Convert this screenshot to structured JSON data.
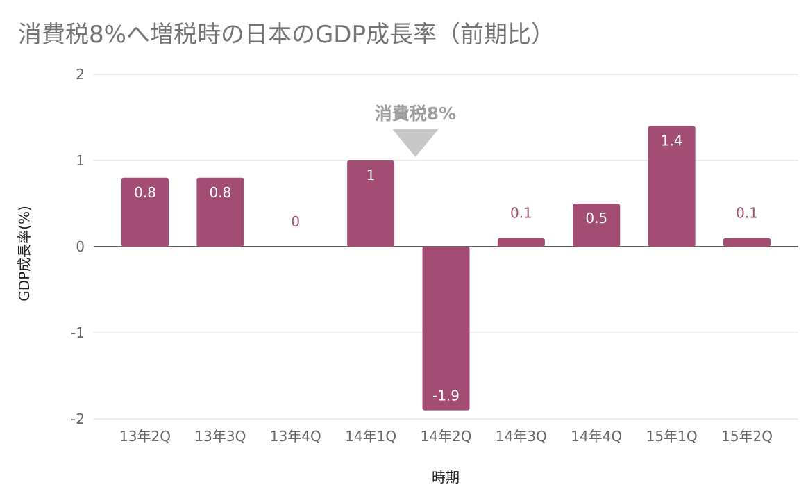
{
  "chart_data": {
    "type": "bar",
    "title": "消費税8%へ増税時の日本のGDP成長率（前期比）",
    "xlabel": "時期",
    "ylabel": "GDP成長率(%)",
    "categories": [
      "13年2Q",
      "13年3Q",
      "13年4Q",
      "14年1Q",
      "14年2Q",
      "14年3Q",
      "14年4Q",
      "15年1Q",
      "15年2Q"
    ],
    "values": [
      0.8,
      0.8,
      0,
      1,
      -1.9,
      0.1,
      0.5,
      1.4,
      0.1
    ],
    "data_labels": [
      "0.8",
      "0.8",
      "0",
      "1",
      "-1.9",
      "0.1",
      "0.5",
      "1.4",
      "0.1"
    ],
    "ylim": [
      -2,
      2
    ],
    "yticks": [
      "2",
      "1",
      "0",
      "-1",
      "-2"
    ],
    "grid": true,
    "annotation": {
      "text": "消費税8%",
      "category": "14年2Q"
    },
    "colors": {
      "bar": "#a44d74",
      "label_inside": "#ffffff",
      "label_outside": "#a44d74",
      "grid": "#d9d9d9",
      "zero_line": "#333333",
      "annotation": "#c8c8c8"
    }
  }
}
